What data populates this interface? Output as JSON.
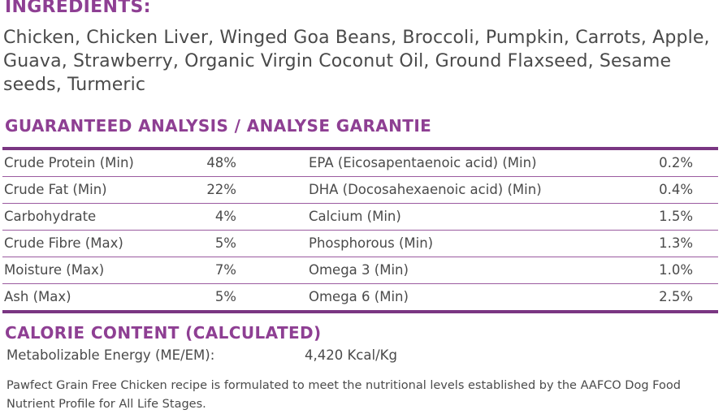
{
  "ingredients": {
    "title": "INGREDIENTS:",
    "text": "Chicken, Chicken Liver, Winged Goa Beans, Broccoli, Pumpkin, Carrots, Apple, Guava, Strawberry, Organic Virgin Coconut Oil, Ground Flaxseed, Sesame seeds, Turmeric"
  },
  "analysis": {
    "title": "GUARANTEED ANALYSIS / ANALYSE GARANTIE",
    "rows": [
      {
        "left_name": "Crude Protein (Min)",
        "left_value": "48%",
        "right_name": "EPA (Eicosapentaenoic acid) (Min)",
        "right_value": "0.2%"
      },
      {
        "left_name": "Crude Fat (Min)",
        "left_value": "22%",
        "right_name": "DHA (Docosahexaenoic acid) (Min)",
        "right_value": "0.4%"
      },
      {
        "left_name": "Carbohydrate",
        "left_value": "4%",
        "right_name": "Calcium (Min)",
        "right_value": "1.5%"
      },
      {
        "left_name": "Crude Fibre (Max)",
        "left_value": "5%",
        "right_name": "Phosphorous (Min)",
        "right_value": "1.3%"
      },
      {
        "left_name": "Moisture (Max)",
        "left_value": "7%",
        "right_name": "Omega 3 (Min)",
        "right_value": "1.0%"
      },
      {
        "left_name": "Ash (Max)",
        "left_value": "5%",
        "right_name": "Omega 6 (Min)",
        "right_value": "2.5%"
      }
    ]
  },
  "calorie": {
    "title": "CALORIE CONTENT (CALCULATED)",
    "label": "Metabolizable Energy (ME/EM):",
    "value": "4,420 Kcal/Kg"
  },
  "footnote": "Pawfect Grain Free Chicken recipe is formulated to meet the nutritional levels established by the AAFCO Dog Food Nutrient Profile for All Life Stages.",
  "colors": {
    "heading": "#8e3f93",
    "rule": "#7a3682",
    "text": "#4a4a4a"
  }
}
